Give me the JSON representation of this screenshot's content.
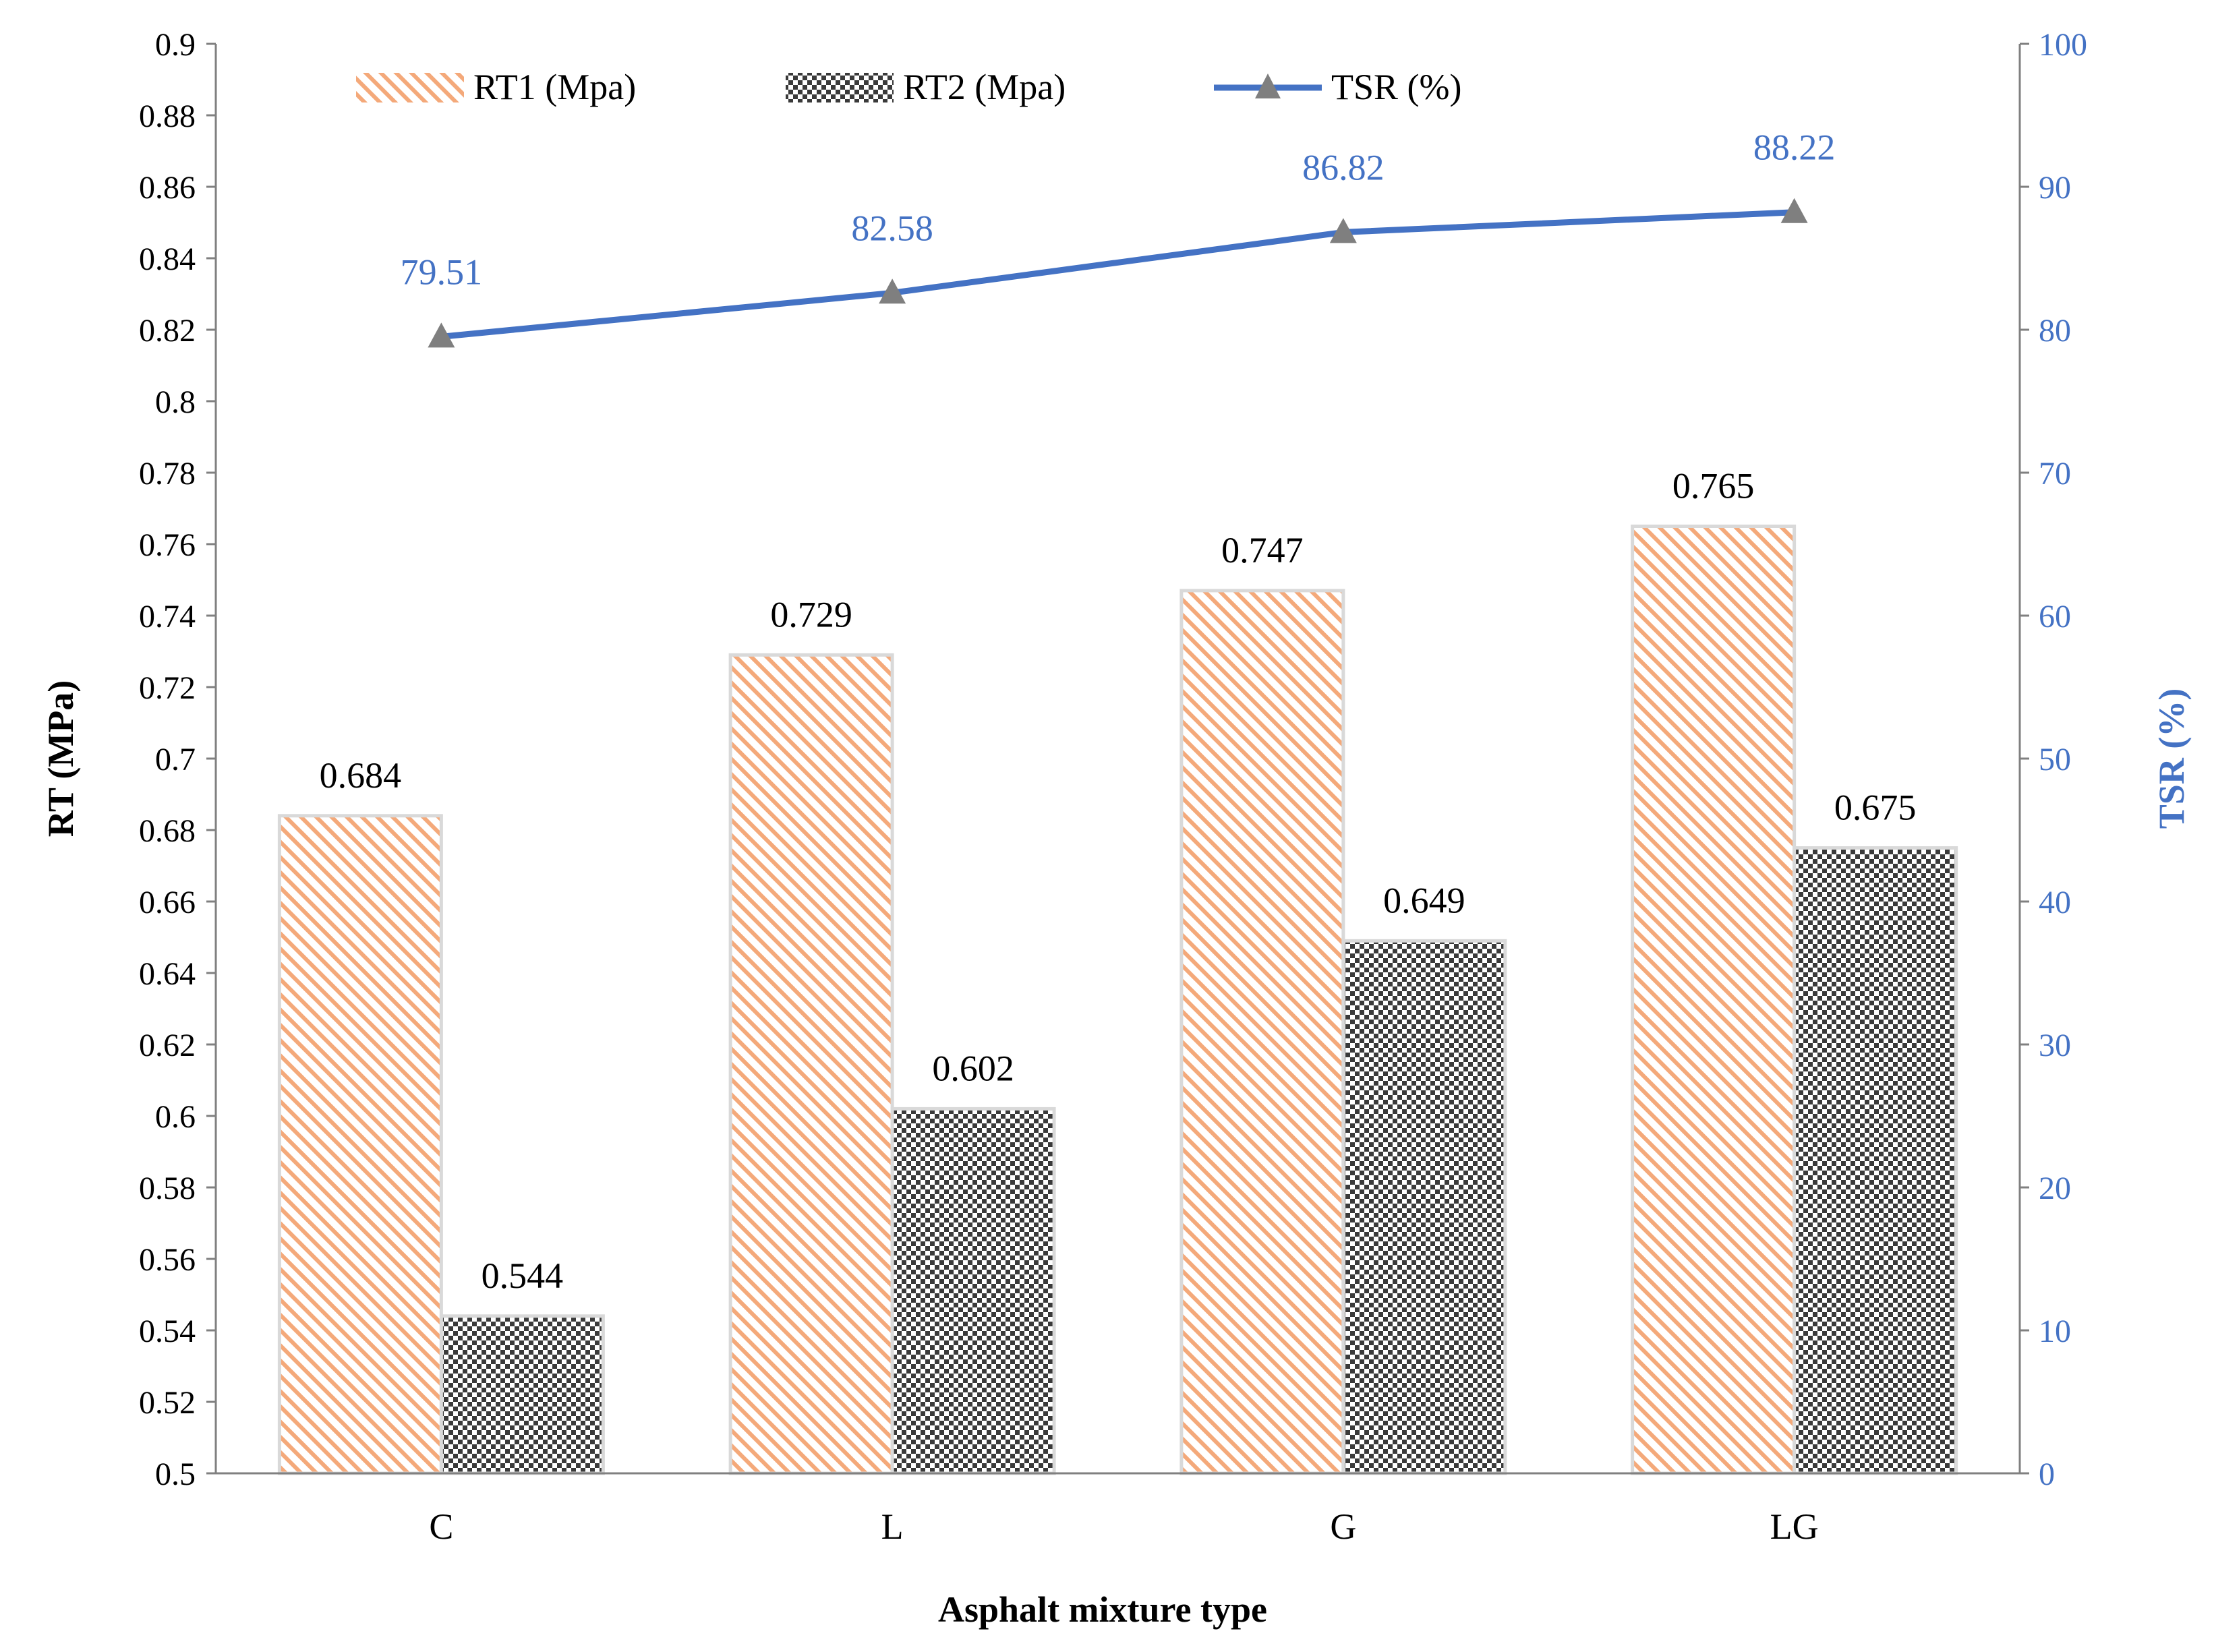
{
  "chart_data": {
    "type": "bar+line",
    "categories": [
      "C",
      "L",
      "G",
      "LG"
    ],
    "series": [
      {
        "name": "RT1 (Mpa)",
        "type": "bar",
        "axis": "left",
        "values": [
          0.684,
          0.729,
          0.747,
          0.765
        ],
        "labels": [
          "0.684",
          "0.729",
          "0.747",
          "0.765"
        ],
        "pattern": "diagonal-hatch",
        "color": "#F4A97A"
      },
      {
        "name": "RT2 (Mpa)",
        "type": "bar",
        "axis": "left",
        "values": [
          0.544,
          0.602,
          0.649,
          0.675
        ],
        "labels": [
          "0.544",
          "0.602",
          "0.649",
          "0.675"
        ],
        "pattern": "checkerboard",
        "color": "#4D4D4D"
      },
      {
        "name": "TSR (%)",
        "type": "line",
        "axis": "right",
        "marker": "triangle",
        "values": [
          79.51,
          82.58,
          86.82,
          88.22
        ],
        "labels": [
          "79.51",
          "82.58",
          "86.82",
          "88.22"
        ],
        "color": "#4472C4",
        "marker_color": "#7F7F7F"
      }
    ],
    "xlabel": "Asphalt mixture type",
    "ylabel": "RT (MPa)",
    "y2label": "TSR (%)",
    "ylim": [
      0.5,
      0.9
    ],
    "y2lim": [
      0,
      100
    ],
    "yticks": [
      "0.5",
      "0.52",
      "0.54",
      "0.56",
      "0.58",
      "0.6",
      "0.62",
      "0.64",
      "0.66",
      "0.68",
      "0.7",
      "0.72",
      "0.74",
      "0.76",
      "0.78",
      "0.8",
      "0.82",
      "0.84",
      "0.86",
      "0.88",
      "0.9"
    ],
    "y2ticks": [
      "0",
      "10",
      "20",
      "30",
      "40",
      "50",
      "60",
      "70",
      "80",
      "90",
      "100"
    ],
    "legend_position": "top",
    "grid": false,
    "colors": {
      "axis": "#808080",
      "right_axis_text": "#4472C4",
      "bar_border": "#D9D9D9"
    }
  }
}
